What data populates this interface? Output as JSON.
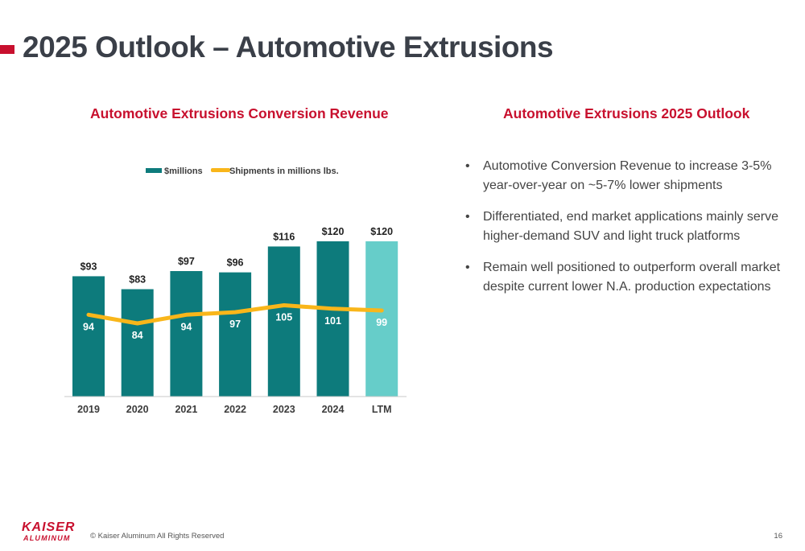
{
  "slide": {
    "title": "2025 Outlook – Automotive Extrusions",
    "page_number": "16",
    "copyright": "© Kaiser Aluminum All Rights Reserved",
    "logo": {
      "line1": "KAISER",
      "line2": "ALUMINUM"
    }
  },
  "colors": {
    "brand_red": "#c8102e",
    "bar_teal": "#0d7b7c",
    "bar_ltm": "#66cdc9",
    "line_yellow": "#f9b61a"
  },
  "chart_title": "Automotive Extrusions Conversion Revenue",
  "chart_data": {
    "type": "bar",
    "categories": [
      "2019",
      "2020",
      "2021",
      "2022",
      "2023",
      "2024",
      "LTM"
    ],
    "series": [
      {
        "name": "$millions",
        "type": "bar",
        "values": [
          93,
          83,
          97,
          96,
          116,
          120,
          120
        ],
        "labels": [
          "$93",
          "$83",
          "$97",
          "$96",
          "$116",
          "$120",
          "$120"
        ]
      },
      {
        "name": "Shipments in millions lbs.",
        "type": "line",
        "values": [
          94,
          84,
          94,
          97,
          105,
          101,
          99
        ],
        "labels": [
          "94",
          "84",
          "94",
          "97",
          "105",
          "101",
          "99"
        ]
      }
    ],
    "legend": "top-center",
    "grid": false
  },
  "outlook": {
    "title": "Automotive Extrusions 2025 Outlook",
    "bullet_glyph": "•",
    "bullets": [
      "Automotive Conversion Revenue to increase 3-5% year-over-year on ~5-7% lower shipments",
      "Differentiated, end market applications mainly serve higher-demand SUV and light truck platforms",
      "Remain well positioned to outperform overall market despite current lower N.A. production expectations"
    ]
  }
}
